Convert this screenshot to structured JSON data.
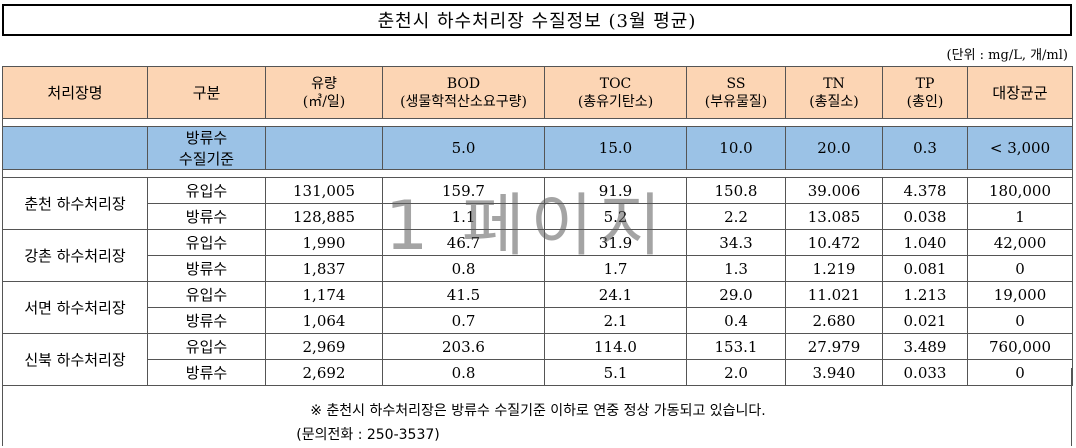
{
  "title": "춘천시 하수처리장 수질정보 (3월 평균)",
  "unit_note": "(단위 : mg/L, 개/ml)",
  "columns": {
    "plant": "처리장명",
    "type": "구분",
    "flow": "유량",
    "flow_unit": "(㎥/일)",
    "bod": "BOD",
    "bod_sub": "(생물학적산소요구량)",
    "toc": "TOC",
    "toc_sub": "(총유기탄소)",
    "ss": "SS",
    "ss_sub": "(부유물질)",
    "tn": "TN",
    "tn_sub": "(총질소)",
    "tp": "TP",
    "tp_sub": "(총인)",
    "coliform": "대장균군"
  },
  "standard": {
    "label_line1": "방류수",
    "label_line2": "수질기준",
    "bod": "5.0",
    "toc": "15.0",
    "ss": "10.0",
    "tn": "20.0",
    "tp": "0.3",
    "coliform": "< 3,000"
  },
  "plants": [
    {
      "name": "춘천 하수처리장",
      "rows": [
        {
          "type": "유입수",
          "flow": "131,005",
          "bod": "159.7",
          "toc": "91.9",
          "ss": "150.8",
          "tn": "39.006",
          "tp": "4.378",
          "coliform": "180,000"
        },
        {
          "type": "방류수",
          "flow": "128,885",
          "bod": "1.1",
          "toc": "5.2",
          "ss": "2.2",
          "tn": "13.085",
          "tp": "0.038",
          "coliform": "1"
        }
      ]
    },
    {
      "name": "강촌 하수처리장",
      "rows": [
        {
          "type": "유입수",
          "flow": "1,990",
          "bod": "46.7",
          "toc": "31.9",
          "ss": "34.3",
          "tn": "10.472",
          "tp": "1.040",
          "coliform": "42,000"
        },
        {
          "type": "방류수",
          "flow": "1,837",
          "bod": "0.8",
          "toc": "1.7",
          "ss": "1.3",
          "tn": "1.219",
          "tp": "0.081",
          "coliform": "0"
        }
      ]
    },
    {
      "name": "서면 하수처리장",
      "rows": [
        {
          "type": "유입수",
          "flow": "1,174",
          "bod": "41.5",
          "toc": "24.1",
          "ss": "29.0",
          "tn": "11.021",
          "tp": "1.213",
          "coliform": "19,000"
        },
        {
          "type": "방류수",
          "flow": "1,064",
          "bod": "0.7",
          "toc": "2.1",
          "ss": "0.4",
          "tn": "2.680",
          "tp": "0.021",
          "coliform": "0"
        }
      ]
    },
    {
      "name": "신북 하수처리장",
      "rows": [
        {
          "type": "유입수",
          "flow": "2,969",
          "bod": "203.6",
          "toc": "114.0",
          "ss": "153.1",
          "tn": "27.979",
          "tp": "3.489",
          "coliform": "760,000"
        },
        {
          "type": "방류수",
          "flow": "2,692",
          "bod": "0.8",
          "toc": "5.1",
          "ss": "2.0",
          "tn": "3.940",
          "tp": "0.033",
          "coliform": "0"
        }
      ]
    }
  ],
  "footer_note": "※ 춘천시 하수처리장은 방류수 수질기준 이하로 연중 정상 가동되고 있습니다.",
  "contact": "(문의전화 : 250-3537)",
  "watermark": "1 페이지"
}
